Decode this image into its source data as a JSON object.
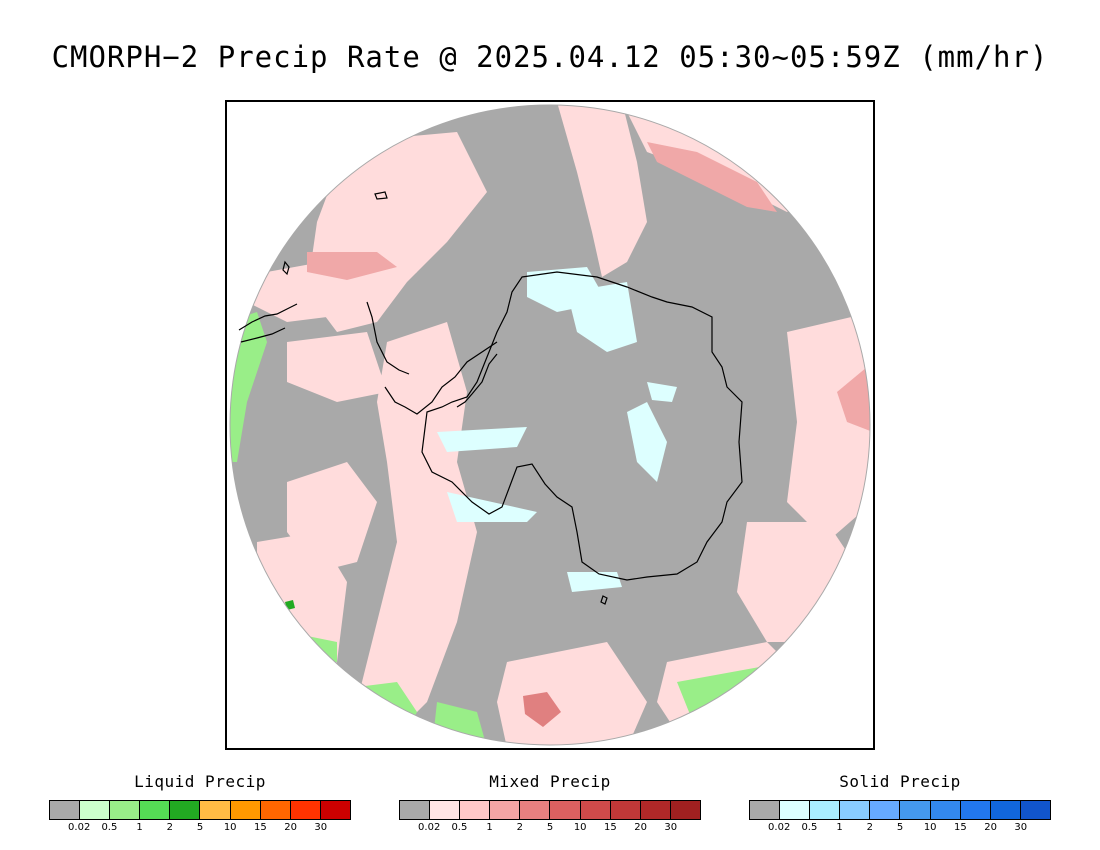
{
  "title": "CMORPH−2 Precip Rate @ 2025.04.12 05:30~05:59Z (mm/hr)",
  "map": {
    "projection": "south-polar-stereographic",
    "base_color": "#a9a9a9",
    "continent_fill": "#a9a9a9",
    "coastline_color": "#000000"
  },
  "legends": [
    {
      "title": "Liquid Precip",
      "ticks": [
        "0.02",
        "0.5",
        "1",
        "2",
        "5",
        "10",
        "15",
        "20",
        "30"
      ],
      "colors": [
        "#a9a9a9",
        "#ccffcc",
        "#99ee88",
        "#55dd55",
        "#22aa22",
        "#ffbb44",
        "#ff9900",
        "#ff6600",
        "#ff3300",
        "#cc0000"
      ]
    },
    {
      "title": "Mixed Precip",
      "ticks": [
        "0.02",
        "0.5",
        "1",
        "2",
        "5",
        "10",
        "15",
        "20",
        "30"
      ],
      "colors": [
        "#a9a9a9",
        "#ffe4e4",
        "#ffc8c8",
        "#f4a5a5",
        "#e88080",
        "#dd6060",
        "#d04a4a",
        "#c03838",
        "#b02828",
        "#a02020"
      ]
    },
    {
      "title": "Solid Precip",
      "ticks": [
        "0.02",
        "0.5",
        "1",
        "2",
        "5",
        "10",
        "15",
        "20",
        "30"
      ],
      "colors": [
        "#a9a9a9",
        "#ddffff",
        "#aaeeff",
        "#88ccff",
        "#66aaff",
        "#4499ee",
        "#3388ee",
        "#2277ee",
        "#1166dd",
        "#1155cc"
      ]
    }
  ]
}
